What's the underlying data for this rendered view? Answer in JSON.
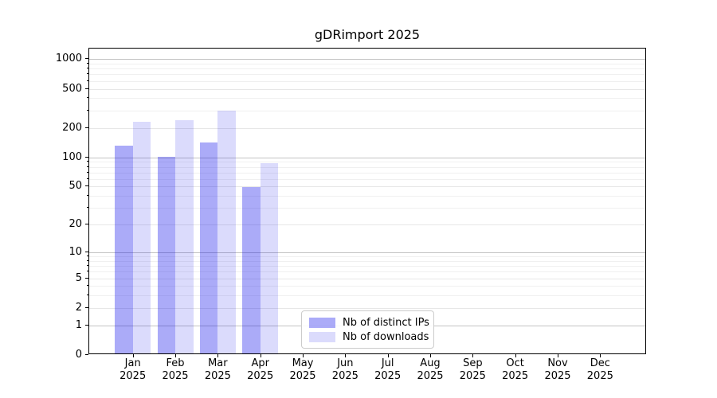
{
  "title": "gDRimport 2025",
  "chart_data": {
    "type": "bar",
    "title": "gDRimport 2025",
    "yscale": "log10(value+1)",
    "ylim": [
      0,
      1280
    ],
    "y_ticks": [
      0,
      1,
      2,
      5,
      10,
      20,
      50,
      100,
      200,
      500,
      1000
    ],
    "y_minor_ticks": [
      3,
      4,
      6,
      7,
      8,
      9,
      30,
      40,
      60,
      70,
      80,
      90,
      300,
      400,
      600,
      700,
      800,
      900
    ],
    "grid": "horizontal",
    "categories": [
      "Jan 2025",
      "Feb 2025",
      "Mar 2025",
      "Apr 2025",
      "May 2025",
      "Jun 2025",
      "Jul 2025",
      "Aug 2025",
      "Sep 2025",
      "Oct 2025",
      "Nov 2025",
      "Dec 2025"
    ],
    "x_tick_months": [
      "Jan",
      "Feb",
      "Mar",
      "Apr",
      "May",
      "Jun",
      "Jul",
      "Aug",
      "Sep",
      "Oct",
      "Nov",
      "Dec"
    ],
    "x_tick_year": "2025",
    "series": [
      {
        "name": "Nb of distinct IPs",
        "color_hex": "#abaaf7",
        "color_rgba": "rgba(0,0,235,0.33)",
        "values": [
          130,
          100,
          140,
          49,
          0,
          0,
          0,
          0,
          0,
          0,
          0,
          0
        ]
      },
      {
        "name": "Nb of downloads",
        "color_hex": "#dbdbfb",
        "color_rgba": "rgba(0,0,235,0.14)",
        "values": [
          225,
          233,
          292,
          85,
          0,
          0,
          0,
          0,
          0,
          0,
          0,
          0
        ]
      }
    ],
    "legend": {
      "position": "bottom-center",
      "entries": [
        "Nb of distinct IPs",
        "Nb of downloads"
      ]
    },
    "colors": {
      "major_grid": "#c3c3c3",
      "labeled_grid": "#e7e7e7",
      "minor_grid": "#f0f0f0",
      "spine": "#000000"
    }
  }
}
